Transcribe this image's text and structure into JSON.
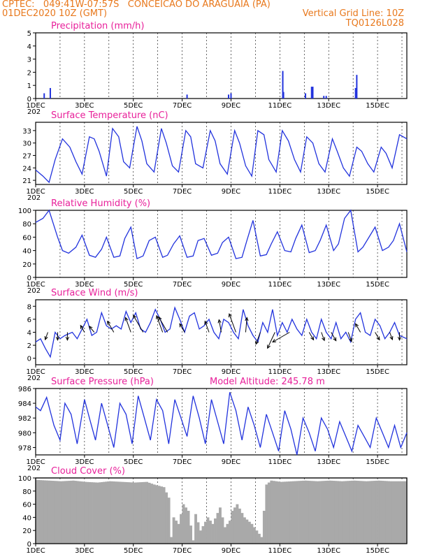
{
  "header": {
    "line1_left": "CPTEC:   049:41W-07:57S   CONCEICAO DO ARAGUAIA (PA)",
    "line2_left": "01DEC2020 10Z (GMT)",
    "line2_right": "Vertical Grid Line: 10Z",
    "line3_right": "TQ0126L028"
  },
  "colors": {
    "header": "#e8781c",
    "title": "#e8209a",
    "series": "#2233dd",
    "cloud": "#a9a9a9",
    "arrow": "#000000"
  },
  "x_ticks": [
    "1DEC",
    "3DEC",
    "5DEC",
    "7DEC",
    "9DEC",
    "11DEC",
    "13DEC",
    "15DEC"
  ],
  "x_sub": "202",
  "model_altitude": "Model Altitude: 245.78 m",
  "chart_data": [
    {
      "id": "precip",
      "type": "bar",
      "title": "Precipitation (mm/h)",
      "ylim": [
        0,
        5
      ],
      "yticks": [
        0,
        1,
        2,
        3,
        4,
        5
      ],
      "x_unit": "day",
      "x_range": [
        1,
        16.2
      ],
      "x": [
        1.35,
        1.6,
        7.2,
        8.9,
        9.0,
        11.12,
        11.15,
        12.05,
        12.3,
        12.35,
        12.8,
        12.9,
        14.1,
        14.15
      ],
      "values": [
        0.4,
        0.8,
        0.3,
        0.3,
        0.4,
        2.1,
        0.5,
        0.4,
        0.9,
        0.9,
        0.2,
        0.2,
        0.8,
        1.8
      ]
    },
    {
      "id": "temp",
      "type": "line",
      "title": "Surface Temperature (nC)",
      "ylim": [
        20,
        35
      ],
      "yticks": [
        21,
        24,
        27,
        30,
        33
      ],
      "x_range": [
        1,
        16.2
      ],
      "x": [
        1.0,
        1.3,
        1.55,
        1.8,
        2.1,
        2.4,
        2.65,
        2.9,
        3.2,
        3.4,
        3.6,
        3.9,
        4.15,
        4.4,
        4.6,
        4.85,
        5.15,
        5.35,
        5.55,
        5.85,
        6.15,
        6.35,
        6.6,
        6.85,
        7.15,
        7.35,
        7.55,
        7.85,
        8.15,
        8.35,
        8.55,
        8.85,
        9.15,
        9.35,
        9.6,
        9.85,
        10.1,
        10.35,
        10.55,
        10.85,
        11.1,
        11.35,
        11.6,
        11.85,
        12.1,
        12.35,
        12.6,
        12.85,
        13.15,
        13.35,
        13.6,
        13.85,
        14.15,
        14.35,
        14.6,
        14.85,
        15.15,
        15.35,
        15.6,
        15.9,
        16.2
      ],
      "values": [
        23.5,
        22,
        20.5,
        26,
        31,
        29,
        25.5,
        22.5,
        31.5,
        31,
        28,
        22,
        33.5,
        31.5,
        25.5,
        24,
        34,
        30.5,
        25,
        23,
        33.5,
        30,
        24.5,
        23,
        33,
        31.5,
        25,
        24,
        33,
        30.5,
        25,
        22.5,
        33,
        30,
        24.5,
        22,
        33,
        32,
        26,
        23,
        33,
        30.5,
        26,
        23,
        31.5,
        30,
        25,
        23,
        31,
        28,
        24,
        22,
        29,
        28,
        25,
        23,
        29,
        27.5,
        24,
        32,
        31
      ]
    },
    {
      "id": "rh",
      "type": "line",
      "title": "Relative Humidity (%)",
      "ylim": [
        0,
        100
      ],
      "yticks": [
        0,
        20,
        40,
        60,
        80,
        100
      ],
      "x_range": [
        1,
        16.2
      ],
      "x": [
        1.0,
        1.3,
        1.55,
        1.9,
        2.1,
        2.35,
        2.65,
        2.9,
        3.2,
        3.45,
        3.7,
        3.9,
        4.2,
        4.45,
        4.65,
        4.9,
        5.15,
        5.4,
        5.65,
        5.9,
        6.2,
        6.4,
        6.65,
        6.9,
        7.2,
        7.45,
        7.65,
        7.9,
        8.2,
        8.45,
        8.65,
        8.9,
        9.2,
        9.45,
        9.65,
        9.9,
        10.2,
        10.45,
        10.65,
        10.9,
        11.2,
        11.45,
        11.65,
        11.9,
        12.2,
        12.45,
        12.65,
        12.9,
        13.2,
        13.4,
        13.65,
        13.9,
        14.2,
        14.4,
        14.65,
        14.9,
        15.2,
        15.45,
        15.65,
        15.9,
        16.2
      ],
      "values": [
        82,
        88,
        100,
        60,
        40,
        36,
        45,
        63,
        33,
        30,
        42,
        60,
        30,
        32,
        58,
        75,
        28,
        32,
        55,
        60,
        30,
        33,
        50,
        62,
        30,
        32,
        55,
        58,
        33,
        36,
        52,
        60,
        28,
        30,
        55,
        85,
        32,
        34,
        50,
        68,
        40,
        38,
        58,
        78,
        37,
        40,
        55,
        78,
        40,
        50,
        88,
        100,
        38,
        45,
        60,
        75,
        40,
        45,
        55,
        80,
        38
      ]
    },
    {
      "id": "wind",
      "type": "line",
      "title": "Surface Wind (m/s)",
      "ylim": [
        -1,
        9
      ],
      "yticks": [
        0,
        2,
        4,
        6,
        8
      ],
      "x_range": [
        1,
        16.2
      ],
      "x": [
        1.0,
        1.2,
        1.4,
        1.6,
        1.8,
        2.0,
        2.2,
        2.5,
        2.7,
        2.9,
        3.1,
        3.3,
        3.5,
        3.7,
        3.9,
        4.1,
        4.3,
        4.5,
        4.7,
        4.9,
        5.1,
        5.3,
        5.5,
        5.7,
        5.9,
        6.1,
        6.3,
        6.5,
        6.7,
        6.9,
        7.1,
        7.3,
        7.5,
        7.7,
        7.9,
        8.1,
        8.3,
        8.5,
        8.7,
        8.9,
        9.1,
        9.3,
        9.5,
        9.7,
        9.9,
        10.1,
        10.3,
        10.5,
        10.7,
        10.9,
        11.1,
        11.3,
        11.5,
        11.7,
        11.9,
        12.1,
        12.3,
        12.5,
        12.7,
        12.9,
        13.1,
        13.3,
        13.5,
        13.7,
        13.9,
        14.1,
        14.3,
        14.5,
        14.7,
        14.9,
        15.1,
        15.3,
        15.5,
        15.7,
        15.9,
        16.2
      ],
      "values": [
        2.5,
        3,
        1.5,
        0.2,
        4,
        3,
        3.5,
        4,
        3,
        4.5,
        6,
        3.5,
        4,
        7,
        5,
        4.5,
        5,
        4.5,
        7.2,
        5.5,
        7,
        4.5,
        4,
        5.5,
        7.5,
        6,
        4,
        4.5,
        7.8,
        6,
        4,
        6.5,
        7,
        4.5,
        5,
        6,
        4,
        3,
        6,
        5.5,
        4,
        3,
        7.5,
        5,
        3.5,
        2.5,
        5.5,
        4,
        7.5,
        3.5,
        5.5,
        4,
        6,
        4.5,
        3.5,
        6,
        4,
        3,
        6,
        4,
        3,
        5.5,
        3,
        4,
        2.5,
        6,
        7,
        4,
        3.5,
        6,
        5,
        3,
        4,
        5.5,
        3.5,
        3
      ]
    },
    {
      "id": "pressure",
      "type": "line",
      "title": "Surface Pressure (hPa)",
      "ylim": [
        977,
        986
      ],
      "yticks": [
        978,
        980,
        982,
        984,
        986
      ],
      "x_range": [
        1,
        16.2
      ],
      "x": [
        1.0,
        1.2,
        1.45,
        1.75,
        2.0,
        2.2,
        2.45,
        2.7,
        3.0,
        3.2,
        3.45,
        3.7,
        3.95,
        4.2,
        4.45,
        4.7,
        4.95,
        5.2,
        5.45,
        5.7,
        5.95,
        6.2,
        6.45,
        6.7,
        6.95,
        7.2,
        7.45,
        7.7,
        7.95,
        8.2,
        8.45,
        8.7,
        8.95,
        9.2,
        9.45,
        9.7,
        9.95,
        10.2,
        10.45,
        10.7,
        10.95,
        11.2,
        11.45,
        11.7,
        11.95,
        12.2,
        12.45,
        12.7,
        12.95,
        13.2,
        13.45,
        13.7,
        13.95,
        14.2,
        14.45,
        14.7,
        14.95,
        15.2,
        15.45,
        15.7,
        15.95,
        16.2
      ],
      "values": [
        983.5,
        983,
        984.8,
        981,
        979,
        984,
        982.5,
        978.5,
        984.5,
        982,
        979,
        984,
        981,
        978,
        984,
        982.5,
        978.5,
        985,
        982,
        979,
        984.5,
        983,
        978.5,
        984.5,
        982,
        979.5,
        985,
        982,
        978.5,
        984.5,
        981.5,
        978.5,
        985.5,
        983,
        979,
        983.5,
        981,
        978,
        982.5,
        980,
        977.5,
        983,
        980.5,
        977,
        982,
        980,
        977.5,
        982,
        980.5,
        978,
        981.5,
        979.5,
        977.5,
        981,
        979.5,
        978,
        982,
        980,
        978,
        981,
        978,
        980
      ]
    },
    {
      "id": "cloud",
      "type": "area",
      "title": "Cloud Cover (%)",
      "ylim": [
        0,
        100
      ],
      "yticks": [
        0,
        20,
        40,
        60,
        80,
        100
      ],
      "x_range": [
        1,
        16.2
      ],
      "x": [
        1.0,
        1.5,
        2.0,
        2.5,
        3.0,
        3.5,
        4.0,
        4.5,
        5.0,
        5.5,
        5.8,
        6.0,
        6.2,
        6.4,
        6.5,
        6.6,
        6.8,
        7.0,
        7.2,
        7.4,
        7.5,
        7.7,
        8.0,
        8.2,
        8.5,
        8.7,
        8.9,
        9.0,
        9.2,
        9.5,
        9.8,
        10.0,
        10.2,
        10.4,
        10.6,
        10.8,
        11.0,
        11.5,
        12.0,
        12.5,
        13.0,
        13.5,
        14.0,
        14.5,
        15.0,
        15.5,
        16.2
      ],
      "values": [
        97,
        96,
        95,
        96,
        94,
        93,
        95,
        94,
        93,
        94,
        90,
        88,
        86,
        70,
        10,
        40,
        30,
        60,
        50,
        5,
        45,
        20,
        40,
        30,
        55,
        25,
        35,
        50,
        60,
        40,
        30,
        20,
        10,
        90,
        96,
        95,
        94,
        95,
        96,
        95,
        96,
        95,
        96,
        95,
        96,
        95,
        95
      ]
    }
  ],
  "wind_arrows": {
    "type": "vector",
    "x": [
      1.5,
      1.9,
      2.3,
      3.0,
      3.4,
      4.2,
      4.9,
      5.4,
      6.2,
      6.4,
      7.1,
      8.1,
      8.6,
      9.2,
      9.6,
      10.2,
      10.8,
      11.4,
      12.2,
      12.7,
      13.1,
      13.8,
      14.3,
      14.9,
      15.5,
      15.9
    ],
    "dir_deg": [
      110,
      90,
      90,
      240,
      230,
      240,
      250,
      240,
      250,
      240,
      240,
      250,
      260,
      250,
      275,
      110,
      115,
      150,
      60,
      70,
      60,
      70,
      240,
      60,
      70,
      90
    ],
    "speed": [
      1.6,
      1.6,
      1.6,
      1.6,
      1.6,
      2.6,
      3.2,
      4.0,
      3.6,
      3.6,
      2.0,
      2.4,
      2.6,
      4.0,
      3.0,
      2.6,
      3.6,
      4.0,
      1.8,
      1.8,
      2.0,
      2.0,
      2.0,
      1.8,
      1.6,
      1.6
    ]
  }
}
